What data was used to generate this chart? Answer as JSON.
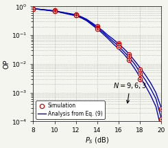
{
  "title": "",
  "xlabel": "$P_S$ (dB)",
  "ylabel": "OP",
  "xlim": [
    8,
    20
  ],
  "ylim_log": [
    -4,
    0
  ],
  "x_ticks": [
    8,
    10,
    12,
    14,
    16,
    18,
    20
  ],
  "annotation_text": "N = 9, 6, 3",
  "legend_simulation": "Simulation",
  "legend_analysis": "Analysis from Eq. (9)",
  "line_color": "#0000bb",
  "sim_marker_face": "#ffffff",
  "sim_marker_edge": "#cc0000",
  "ps_sim_points": [
    8,
    10,
    12,
    14,
    16,
    17,
    18,
    20
  ],
  "op_sim_N3": [
    0.83,
    0.72,
    0.54,
    0.21,
    0.052,
    0.022,
    0.0065,
    0.00028
  ],
  "op_sim_N6": [
    0.83,
    0.7,
    0.51,
    0.185,
    0.046,
    0.018,
    0.0045,
    0.00012
  ],
  "op_sim_N9": [
    0.83,
    0.68,
    0.49,
    0.165,
    0.04,
    0.014,
    0.003,
    4.5e-05
  ],
  "ps_curve": [
    8,
    8.5,
    9,
    9.5,
    10,
    10.5,
    11,
    11.5,
    12,
    12.5,
    13,
    13.5,
    14,
    14.5,
    15,
    15.5,
    16,
    16.5,
    17,
    17.5,
    18,
    18.5,
    19,
    19.5,
    20
  ],
  "op_curve_N3": [
    0.83,
    0.8,
    0.77,
    0.74,
    0.7,
    0.65,
    0.6,
    0.56,
    0.51,
    0.44,
    0.36,
    0.27,
    0.2,
    0.145,
    0.1,
    0.072,
    0.05,
    0.034,
    0.022,
    0.013,
    0.0075,
    0.0042,
    0.0022,
    0.001,
    0.0003
  ],
  "op_curve_N6": [
    0.83,
    0.8,
    0.77,
    0.73,
    0.69,
    0.64,
    0.59,
    0.54,
    0.49,
    0.42,
    0.34,
    0.25,
    0.18,
    0.13,
    0.088,
    0.06,
    0.042,
    0.027,
    0.017,
    0.01,
    0.0052,
    0.0028,
    0.0014,
    0.00062,
    0.00013
  ],
  "op_curve_N9": [
    0.83,
    0.8,
    0.76,
    0.72,
    0.68,
    0.63,
    0.57,
    0.52,
    0.47,
    0.4,
    0.32,
    0.23,
    0.165,
    0.115,
    0.077,
    0.05,
    0.034,
    0.022,
    0.013,
    0.007,
    0.0036,
    0.0018,
    0.00082,
    0.00033,
    5.5e-05
  ],
  "bg_color": "#f5f5f0",
  "figsize": [
    2.45,
    2.15
  ],
  "dpi": 100
}
